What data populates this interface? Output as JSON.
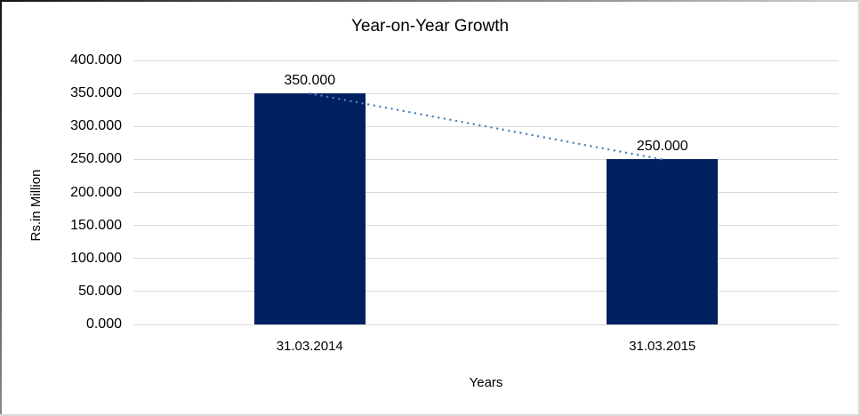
{
  "chart_data": {
    "type": "bar",
    "title": "Year-on-Year Growth",
    "xlabel": "Years",
    "ylabel": "Rs.in Million",
    "categories": [
      "31.03.2014",
      "31.03.2015"
    ],
    "values": [
      350,
      250
    ],
    "value_labels": [
      "350.000",
      "250.000"
    ],
    "ylim": [
      0,
      400
    ],
    "ytick_step": 50,
    "ytick_labels": [
      "0.000",
      "50.000",
      "100.000",
      "150.000",
      "200.000",
      "250.000",
      "300.000",
      "350.000",
      "400.000"
    ],
    "grid": true,
    "legend_position": "none",
    "bar_color": "#002060",
    "gridline_color": "#d9d9d9",
    "trendline": {
      "style": "dotted",
      "color": "#4f81bd",
      "connects": "bar-tops",
      "from_value": 350,
      "to_value": 250
    }
  }
}
